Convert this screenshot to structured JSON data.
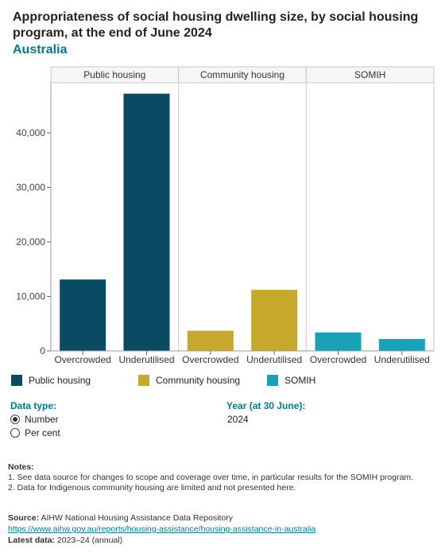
{
  "title": "Appropriateness of social housing dwelling size, by social housing program, at the end of June 2024",
  "subtitle": "Australia",
  "colors": {
    "public_housing": "#0b4a63",
    "community_housing": "#c6a82b",
    "somih": "#17a2b8",
    "accent": "#007b88"
  },
  "chart_data": {
    "type": "bar",
    "ylim": [
      0,
      50000
    ],
    "y_ticks": [
      0,
      10000,
      20000,
      30000,
      40000
    ],
    "y_tick_labels": [
      "0",
      "10,000",
      "20,000",
      "30,000",
      "40,000"
    ],
    "panels": [
      {
        "name": "Public housing",
        "categories": [
          "Overcrowded",
          "Underutilised"
        ],
        "values": [
          13100,
          47200
        ],
        "color": "#0b4a63"
      },
      {
        "name": "Community housing",
        "categories": [
          "Overcrowded",
          "Underutilised"
        ],
        "values": [
          3700,
          11200
        ],
        "color": "#c6a82b"
      },
      {
        "name": "SOMIH",
        "categories": [
          "Overcrowded",
          "Underutilised"
        ],
        "values": [
          3400,
          2200
        ],
        "color": "#17a2b8"
      }
    ],
    "legend": [
      "Public housing",
      "Community housing",
      "SOMIH"
    ],
    "grid": false
  },
  "controls": {
    "data_type_label": "Data type:",
    "options": [
      {
        "label": "Number",
        "selected": true
      },
      {
        "label": "Per cent",
        "selected": false
      }
    ],
    "year_label": "Year (at 30 June):",
    "year_value": "2024"
  },
  "notes": {
    "heading": "Notes:",
    "items": [
      "1. See data source for changes to scope and coverage over time, in particular results for the SOMIH program.",
      "2. Data for Indigenous community housing are limited and not presented here."
    ]
  },
  "source": {
    "label": "Source:",
    "text": "AIHW National Housing Assistance Data Repository",
    "link": "https://www.aihw.gov.au/reports/housing-assistance/housing-assistance-in-australia",
    "latest_label": "Latest data:",
    "latest_text": "2023–24 (annual)"
  }
}
